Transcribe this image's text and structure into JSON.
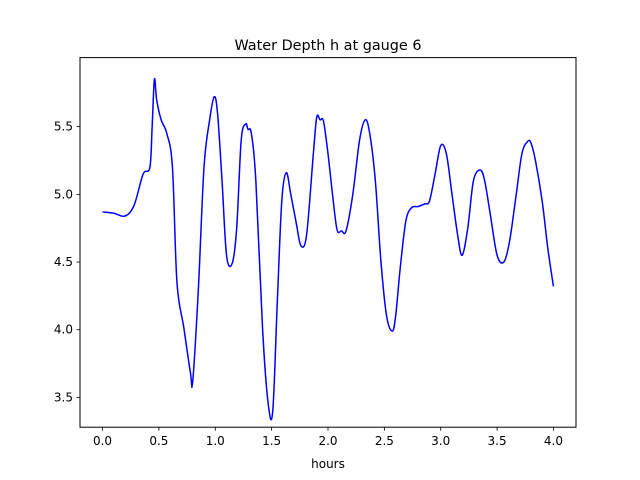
{
  "chart_data": {
    "type": "line",
    "title": "Water Depth h at gauge 6",
    "xlabel": "hours",
    "ylabel": "",
    "xlim": [
      -0.2,
      4.2
    ],
    "ylim": [
      3.28,
      6.01
    ],
    "xticks": [
      0.0,
      0.5,
      1.0,
      1.5,
      2.0,
      2.5,
      3.0,
      3.5,
      4.0
    ],
    "xtick_labels": [
      "0.0",
      "0.5",
      "1.0",
      "1.5",
      "2.0",
      "2.5",
      "3.0",
      "3.5",
      "4.0"
    ],
    "yticks": [
      3.5,
      4.0,
      4.5,
      5.0,
      5.5
    ],
    "ytick_labels": [
      "3.5",
      "4.0",
      "4.5",
      "5.0",
      "5.5"
    ],
    "grid": false,
    "series": [
      {
        "color": "#0000ff",
        "x": [
          0.0,
          0.1,
          0.2,
          0.28,
          0.36,
          0.42,
          0.44,
          0.46,
          0.48,
          0.52,
          0.57,
          0.62,
          0.66,
          0.72,
          0.78,
          0.8,
          0.85,
          0.9,
          0.95,
          0.99,
          1.02,
          1.06,
          1.1,
          1.15,
          1.19,
          1.23,
          1.27,
          1.29,
          1.32,
          1.36,
          1.42,
          1.47,
          1.51,
          1.55,
          1.59,
          1.63,
          1.67,
          1.72,
          1.76,
          1.81,
          1.87,
          1.9,
          1.93,
          1.96,
          2.0,
          2.04,
          2.08,
          2.12,
          2.16,
          2.22,
          2.28,
          2.33,
          2.37,
          2.42,
          2.47,
          2.52,
          2.57,
          2.6,
          2.64,
          2.69,
          2.74,
          2.8,
          2.86,
          2.9,
          2.95,
          3.0,
          3.05,
          3.1,
          3.15,
          3.19,
          3.24,
          3.29,
          3.35,
          3.39,
          3.44,
          3.5,
          3.56,
          3.61,
          3.67,
          3.72,
          3.77,
          3.8,
          3.84,
          3.9,
          3.95,
          4.0
        ],
        "y": [
          4.87,
          4.86,
          4.84,
          4.92,
          5.15,
          5.2,
          5.5,
          5.85,
          5.7,
          5.55,
          5.45,
          5.2,
          4.35,
          4.02,
          3.68,
          3.62,
          4.3,
          5.2,
          5.55,
          5.72,
          5.6,
          5.1,
          4.55,
          4.49,
          4.75,
          5.4,
          5.52,
          5.48,
          5.45,
          5.1,
          4.0,
          3.45,
          3.4,
          4.2,
          4.95,
          5.16,
          5.0,
          4.78,
          4.62,
          4.7,
          5.3,
          5.57,
          5.55,
          5.54,
          5.3,
          5.0,
          4.74,
          4.73,
          4.73,
          5.0,
          5.4,
          5.55,
          5.45,
          5.1,
          4.5,
          4.1,
          3.99,
          4.1,
          4.45,
          4.8,
          4.9,
          4.91,
          4.93,
          4.95,
          5.15,
          5.36,
          5.3,
          5.0,
          4.7,
          4.55,
          4.75,
          5.1,
          5.18,
          5.1,
          4.85,
          4.55,
          4.5,
          4.65,
          5.0,
          5.3,
          5.39,
          5.38,
          5.25,
          4.95,
          4.6,
          4.32
        ]
      }
    ]
  }
}
